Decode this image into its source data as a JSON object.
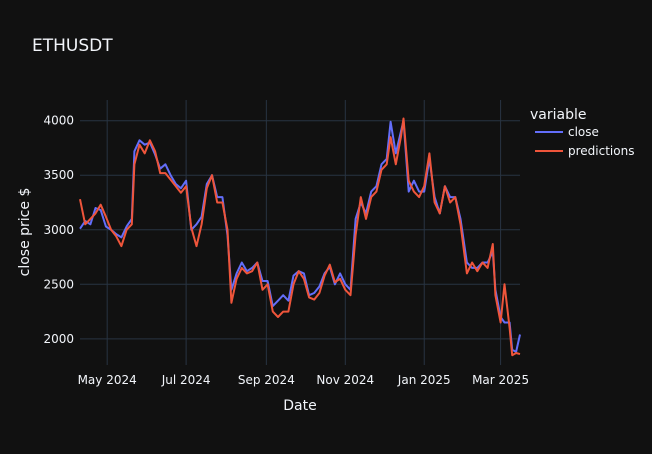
{
  "chart_data": {
    "type": "line",
    "title": "ETHUSDT",
    "xlabel": "Date",
    "ylabel": "close price $",
    "x_ticks": [
      "May 2024",
      "Jul 2024",
      "Sep 2024",
      "Nov 2024",
      "Jan 2025",
      "Mar 2025"
    ],
    "x_tick_dates": [
      "2024-05-01",
      "2024-07-01",
      "2024-09-01",
      "2024-11-01",
      "2025-01-01",
      "2025-03-01"
    ],
    "y_ticks": [
      2000,
      2500,
      3000,
      3500,
      4000
    ],
    "xlim": [
      "2024-04-10",
      "2025-03-16"
    ],
    "ylim": [
      1760,
      4190
    ],
    "legend_title": "variable",
    "legend_position": "right",
    "grid": true,
    "series": [
      {
        "name": "close",
        "color": "#636efa",
        "points": [
          [
            "2024-04-10",
            3010
          ],
          [
            "2024-04-14",
            3080
          ],
          [
            "2024-04-18",
            3050
          ],
          [
            "2024-04-22",
            3200
          ],
          [
            "2024-04-26",
            3180
          ],
          [
            "2024-04-30",
            3030
          ],
          [
            "2024-05-04",
            3000
          ],
          [
            "2024-05-08",
            2960
          ],
          [
            "2024-05-12",
            2930
          ],
          [
            "2024-05-16",
            3030
          ],
          [
            "2024-05-20",
            3100
          ],
          [
            "2024-05-22",
            3720
          ],
          [
            "2024-05-26",
            3820
          ],
          [
            "2024-05-30",
            3780
          ],
          [
            "2024-06-03",
            3800
          ],
          [
            "2024-06-07",
            3690
          ],
          [
            "2024-06-11",
            3560
          ],
          [
            "2024-06-15",
            3600
          ],
          [
            "2024-06-19",
            3500
          ],
          [
            "2024-06-23",
            3420
          ],
          [
            "2024-06-27",
            3380
          ],
          [
            "2024-07-01",
            3450
          ],
          [
            "2024-07-05",
            3000
          ],
          [
            "2024-07-09",
            3050
          ],
          [
            "2024-07-13",
            3120
          ],
          [
            "2024-07-17",
            3420
          ],
          [
            "2024-07-21",
            3500
          ],
          [
            "2024-07-25",
            3300
          ],
          [
            "2024-07-29",
            3300
          ],
          [
            "2024-08-02",
            2950
          ],
          [
            "2024-08-05",
            2450
          ],
          [
            "2024-08-09",
            2600
          ],
          [
            "2024-08-13",
            2700
          ],
          [
            "2024-08-17",
            2620
          ],
          [
            "2024-08-21",
            2650
          ],
          [
            "2024-08-25",
            2700
          ],
          [
            "2024-08-29",
            2530
          ],
          [
            "2024-09-02",
            2530
          ],
          [
            "2024-09-06",
            2300
          ],
          [
            "2024-09-10",
            2350
          ],
          [
            "2024-09-14",
            2400
          ],
          [
            "2024-09-18",
            2350
          ],
          [
            "2024-09-22",
            2580
          ],
          [
            "2024-09-26",
            2620
          ],
          [
            "2024-09-30",
            2600
          ],
          [
            "2024-10-04",
            2400
          ],
          [
            "2024-10-08",
            2420
          ],
          [
            "2024-10-12",
            2480
          ],
          [
            "2024-10-16",
            2600
          ],
          [
            "2024-10-20",
            2660
          ],
          [
            "2024-10-24",
            2500
          ],
          [
            "2024-10-28",
            2600
          ],
          [
            "2024-11-01",
            2500
          ],
          [
            "2024-11-05",
            2450
          ],
          [
            "2024-11-09",
            3100
          ],
          [
            "2024-11-13",
            3250
          ],
          [
            "2024-11-17",
            3150
          ],
          [
            "2024-11-21",
            3350
          ],
          [
            "2024-11-25",
            3400
          ],
          [
            "2024-11-29",
            3600
          ],
          [
            "2024-12-03",
            3650
          ],
          [
            "2024-12-06",
            3990
          ],
          [
            "2024-12-10",
            3700
          ],
          [
            "2024-12-14",
            3900
          ],
          [
            "2024-12-16",
            4000
          ],
          [
            "2024-12-20",
            3350
          ],
          [
            "2024-12-24",
            3450
          ],
          [
            "2024-12-28",
            3350
          ],
          [
            "2025-01-01",
            3350
          ],
          [
            "2025-01-05",
            3650
          ],
          [
            "2025-01-09",
            3300
          ],
          [
            "2025-01-13",
            3150
          ],
          [
            "2025-01-17",
            3400
          ],
          [
            "2025-01-21",
            3300
          ],
          [
            "2025-01-25",
            3300
          ],
          [
            "2025-01-29",
            3100
          ],
          [
            "2025-02-03",
            2700
          ],
          [
            "2025-02-07",
            2650
          ],
          [
            "2025-02-11",
            2650
          ],
          [
            "2025-02-15",
            2700
          ],
          [
            "2025-02-19",
            2700
          ],
          [
            "2025-02-23",
            2800
          ],
          [
            "2025-02-25",
            2450
          ],
          [
            "2025-03-01",
            2200
          ],
          [
            "2025-03-04",
            2150
          ],
          [
            "2025-03-08",
            2150
          ],
          [
            "2025-03-10",
            1900
          ],
          [
            "2025-03-13",
            1880
          ],
          [
            "2025-03-16",
            2040
          ]
        ]
      },
      {
        "name": "predictions",
        "color": "#ef553b",
        "points": [
          [
            "2024-04-10",
            3280
          ],
          [
            "2024-04-14",
            3050
          ],
          [
            "2024-04-18",
            3100
          ],
          [
            "2024-04-22",
            3150
          ],
          [
            "2024-04-26",
            3230
          ],
          [
            "2024-04-30",
            3120
          ],
          [
            "2024-05-04",
            3000
          ],
          [
            "2024-05-08",
            2940
          ],
          [
            "2024-05-12",
            2850
          ],
          [
            "2024-05-16",
            3000
          ],
          [
            "2024-05-20",
            3050
          ],
          [
            "2024-05-22",
            3600
          ],
          [
            "2024-05-26",
            3780
          ],
          [
            "2024-05-30",
            3700
          ],
          [
            "2024-06-03",
            3820
          ],
          [
            "2024-06-07",
            3720
          ],
          [
            "2024-06-11",
            3520
          ],
          [
            "2024-06-15",
            3520
          ],
          [
            "2024-06-19",
            3460
          ],
          [
            "2024-06-23",
            3400
          ],
          [
            "2024-06-27",
            3340
          ],
          [
            "2024-07-01",
            3400
          ],
          [
            "2024-07-05",
            3020
          ],
          [
            "2024-07-09",
            2850
          ],
          [
            "2024-07-13",
            3050
          ],
          [
            "2024-07-17",
            3380
          ],
          [
            "2024-07-21",
            3500
          ],
          [
            "2024-07-25",
            3250
          ],
          [
            "2024-07-29",
            3250
          ],
          [
            "2024-08-02",
            3000
          ],
          [
            "2024-08-05",
            2330
          ],
          [
            "2024-08-09",
            2550
          ],
          [
            "2024-08-13",
            2650
          ],
          [
            "2024-08-17",
            2600
          ],
          [
            "2024-08-21",
            2620
          ],
          [
            "2024-08-25",
            2700
          ],
          [
            "2024-08-29",
            2450
          ],
          [
            "2024-09-02",
            2500
          ],
          [
            "2024-09-06",
            2250
          ],
          [
            "2024-09-10",
            2200
          ],
          [
            "2024-09-14",
            2250
          ],
          [
            "2024-09-18",
            2250
          ],
          [
            "2024-09-22",
            2500
          ],
          [
            "2024-09-26",
            2620
          ],
          [
            "2024-09-30",
            2550
          ],
          [
            "2024-10-04",
            2380
          ],
          [
            "2024-10-08",
            2360
          ],
          [
            "2024-10-12",
            2420
          ],
          [
            "2024-10-16",
            2580
          ],
          [
            "2024-10-20",
            2680
          ],
          [
            "2024-10-24",
            2520
          ],
          [
            "2024-10-28",
            2550
          ],
          [
            "2024-11-01",
            2450
          ],
          [
            "2024-11-05",
            2400
          ],
          [
            "2024-11-09",
            2950
          ],
          [
            "2024-11-13",
            3300
          ],
          [
            "2024-11-17",
            3100
          ],
          [
            "2024-11-21",
            3300
          ],
          [
            "2024-11-25",
            3350
          ],
          [
            "2024-11-29",
            3550
          ],
          [
            "2024-12-03",
            3600
          ],
          [
            "2024-12-06",
            3850
          ],
          [
            "2024-12-10",
            3600
          ],
          [
            "2024-12-14",
            3850
          ],
          [
            "2024-12-16",
            4020
          ],
          [
            "2024-12-20",
            3450
          ],
          [
            "2024-12-24",
            3350
          ],
          [
            "2024-12-28",
            3300
          ],
          [
            "2025-01-01",
            3400
          ],
          [
            "2025-01-05",
            3700
          ],
          [
            "2025-01-09",
            3250
          ],
          [
            "2025-01-13",
            3150
          ],
          [
            "2025-01-17",
            3400
          ],
          [
            "2025-01-21",
            3250
          ],
          [
            "2025-01-25",
            3300
          ],
          [
            "2025-01-29",
            3050
          ],
          [
            "2025-02-03",
            2600
          ],
          [
            "2025-02-07",
            2700
          ],
          [
            "2025-02-11",
            2620
          ],
          [
            "2025-02-15",
            2700
          ],
          [
            "2025-02-19",
            2650
          ],
          [
            "2025-02-23",
            2870
          ],
          [
            "2025-02-25",
            2400
          ],
          [
            "2025-03-01",
            2150
          ],
          [
            "2025-03-04",
            2500
          ],
          [
            "2025-03-08",
            2100
          ],
          [
            "2025-03-10",
            1850
          ],
          [
            "2025-03-13",
            1870
          ],
          [
            "2025-03-16",
            1860
          ]
        ]
      }
    ]
  }
}
